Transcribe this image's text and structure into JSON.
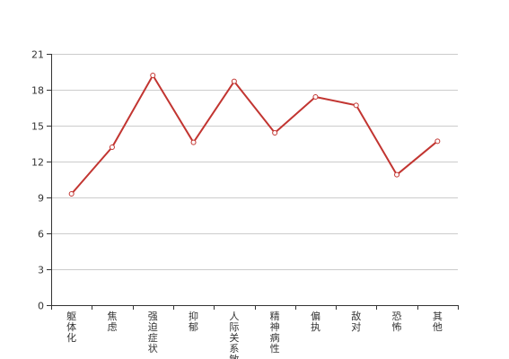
{
  "chart_data": {
    "type": "line",
    "title": "",
    "xlabel": "",
    "ylabel": "",
    "categories": [
      "躯体化",
      "焦虑",
      "强迫症状",
      "抑郁",
      "人际关系敏感",
      "精神病性",
      "偏执",
      "敌对",
      "恐怖",
      "其他"
    ],
    "series": [
      {
        "values": [
          9.3,
          13.2,
          19.2,
          13.6,
          18.7,
          14.4,
          17.4,
          16.7,
          10.9,
          13.7
        ]
      }
    ],
    "ylim": [
      0,
      21
    ],
    "yticks": [
      0,
      3,
      6,
      9,
      12,
      15,
      18,
      21
    ],
    "grid": true,
    "legend": "none",
    "colors": {
      "line": "#c23531",
      "grid": "#cccccc",
      "axis": "#333333"
    }
  }
}
